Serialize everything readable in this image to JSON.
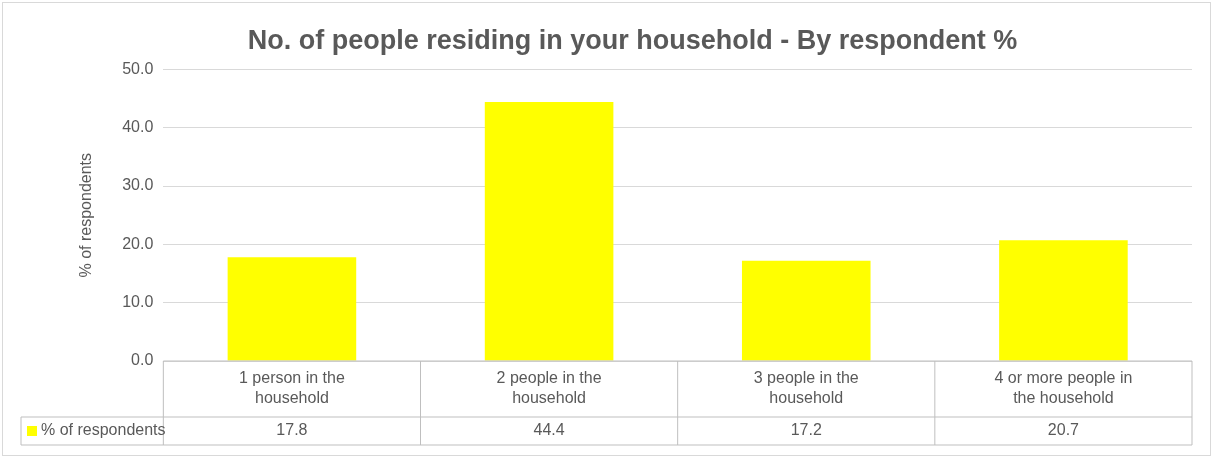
{
  "chart_data": {
    "type": "bar",
    "title": "No. of people residing in your household - By respondent %",
    "ylabel": "% of respondents",
    "categories": [
      "1 person in the household",
      "2 people in the household",
      "3 people in the household",
      "4 or more people in the household"
    ],
    "series": [
      {
        "name": "% of respondents",
        "color": "#ffff00",
        "values": [
          17.8,
          44.4,
          17.2,
          20.7
        ]
      }
    ],
    "ylim": [
      0,
      50
    ],
    "yticks": [
      {
        "value": 0,
        "label": "0.0"
      },
      {
        "value": 10,
        "label": "10.0"
      },
      {
        "value": 20,
        "label": "20.0"
      },
      {
        "value": 30,
        "label": "30.0"
      },
      {
        "value": 40,
        "label": "40.0"
      },
      {
        "value": 50,
        "label": "50.0"
      }
    ],
    "grid": true,
    "legend": "bottom",
    "data_labels": true
  }
}
